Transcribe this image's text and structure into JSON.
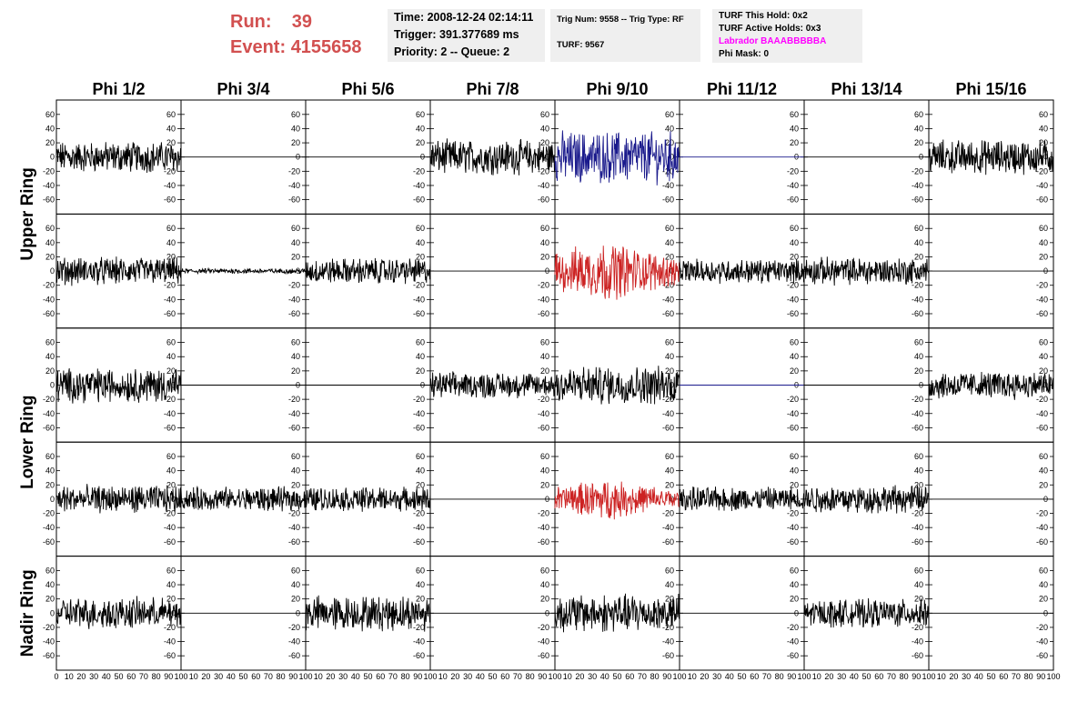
{
  "header": {
    "run_label": "Run:",
    "run_value": "39",
    "event_label": "Event:",
    "event_value": "4155658"
  },
  "time_box": {
    "time": "Time: 2008-12-24 02:14:11",
    "trigger": "Trigger: 391.377689 ms",
    "priority": "Priority: 2 -- Queue: 2"
  },
  "trig_box": {
    "trig": "Trig Num: 9558 -- Trig Type: RF",
    "turf": "TURF: 9567"
  },
  "turf_box": {
    "this_hold": "TURF This Hold: 0x2",
    "active_holds": "TURF Active Holds: 0x3",
    "labrador": "Labrador BAAABBBBBA",
    "phi_mask": "Phi Mask: 0"
  },
  "colors": {
    "trace_default": "#000000",
    "trace_blue": "#1a1a8c",
    "trace_red": "#cc2222",
    "header_red": "#d25050",
    "labrador_magenta": "#ff00ff",
    "box_bg": "#efefef"
  },
  "chart_data": {
    "type": "line",
    "columns": [
      "Phi 1/2",
      "Phi 3/4",
      "Phi 5/6",
      "Phi 7/8",
      "Phi 9/10",
      "Phi 11/12",
      "Phi 13/14",
      "Phi 15/16"
    ],
    "row_groups": [
      {
        "label": "Upper Ring",
        "rows": [
          0,
          1
        ]
      },
      {
        "label": "Lower Ring",
        "rows": [
          2,
          3
        ]
      },
      {
        "label": "Nadir Ring",
        "rows": [
          4
        ]
      }
    ],
    "xlim": [
      0,
      100
    ],
    "x_ticks": [
      "0",
      "10",
      "20",
      "30",
      "40",
      "50",
      "60",
      "70",
      "80",
      "90",
      "100"
    ],
    "ylim": [
      -70,
      70
    ],
    "y_ticks": [
      "60",
      "40",
      "20",
      "0",
      "-20",
      "-40",
      "-60"
    ],
    "panels": [
      [
        {
          "a": 18,
          "c": "k"
        },
        {
          "a": 0,
          "c": "k"
        },
        {
          "a": 0,
          "c": "k"
        },
        {
          "a": 20,
          "c": "k"
        },
        {
          "a": 30,
          "c": "b"
        },
        {
          "a": 0,
          "c": "b"
        },
        {
          "a": 0,
          "c": "k"
        },
        {
          "a": 20,
          "c": "k"
        }
      ],
      [
        {
          "a": 16,
          "c": "k"
        },
        {
          "a": 3,
          "c": "k"
        },
        {
          "a": 15,
          "c": "k"
        },
        {
          "a": 0,
          "c": "k"
        },
        {
          "a": 30,
          "c": "r"
        },
        {
          "a": 14,
          "c": "k"
        },
        {
          "a": 16,
          "c": "k"
        },
        {
          "a": 0,
          "c": "k"
        }
      ],
      [
        {
          "a": 20,
          "c": "k"
        },
        {
          "a": 0,
          "c": "k"
        },
        {
          "a": 0,
          "c": "k"
        },
        {
          "a": 15,
          "c": "k"
        },
        {
          "a": 22,
          "c": "k"
        },
        {
          "a": 0,
          "c": "b"
        },
        {
          "a": 0,
          "c": "k"
        },
        {
          "a": 16,
          "c": "k"
        }
      ],
      [
        {
          "a": 16,
          "c": "k"
        },
        {
          "a": 14,
          "c": "k"
        },
        {
          "a": 14,
          "c": "k"
        },
        {
          "a": 0,
          "c": "k"
        },
        {
          "a": 20,
          "c": "r"
        },
        {
          "a": 14,
          "c": "k"
        },
        {
          "a": 16,
          "c": "k"
        },
        {
          "a": 0,
          "c": "k"
        }
      ],
      [
        {
          "a": 18,
          "c": "k"
        },
        {
          "a": 0,
          "c": "k"
        },
        {
          "a": 20,
          "c": "k"
        },
        {
          "a": 0,
          "c": "k"
        },
        {
          "a": 22,
          "c": "k"
        },
        {
          "a": 0,
          "c": "k"
        },
        {
          "a": 16,
          "c": "k"
        },
        {
          "a": 0,
          "c": "k"
        }
      ]
    ]
  }
}
